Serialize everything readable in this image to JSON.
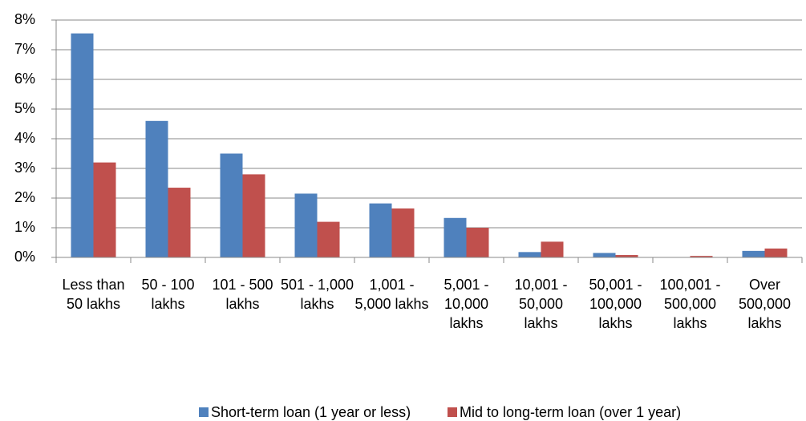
{
  "chart_data": {
    "type": "bar",
    "categories": [
      "Less than 50 lakhs",
      "50 - 100 lakhs",
      "101 - 500 lakhs",
      "501 - 1,000 lakhs",
      "1,001 - 5,000 lakhs",
      "5,001 - 10,000 lakhs",
      "10,001 - 50,000 lakhs",
      "50,001 - 100,000 lakhs",
      "100,001 - 500,000 lakhs",
      "Over 500,000 lakhs"
    ],
    "series": [
      {
        "name": "Short-term loan (1 year or less)",
        "color": "#4f81bd",
        "values": [
          7.55,
          4.6,
          3.5,
          2.15,
          1.82,
          1.33,
          0.18,
          0.15,
          0.01,
          0.22
        ]
      },
      {
        "name": "Mid to long-term loan (over 1 year)",
        "color": "#c0504d",
        "values": [
          3.2,
          2.35,
          2.8,
          1.2,
          1.65,
          1.0,
          0.53,
          0.08,
          0.05,
          0.3
        ]
      }
    ],
    "ylim": [
      0,
      8
    ],
    "yticks": [
      {
        "value": 0,
        "label": "0%"
      },
      {
        "value": 1,
        "label": "1%"
      },
      {
        "value": 2,
        "label": "2%"
      },
      {
        "value": 3,
        "label": "3%"
      },
      {
        "value": 4,
        "label": "4%"
      },
      {
        "value": 5,
        "label": "5%"
      },
      {
        "value": 6,
        "label": "6%"
      },
      {
        "value": 7,
        "label": "7%"
      },
      {
        "value": 8,
        "label": "8%"
      }
    ],
    "grid": true,
    "legend": "bottom"
  }
}
